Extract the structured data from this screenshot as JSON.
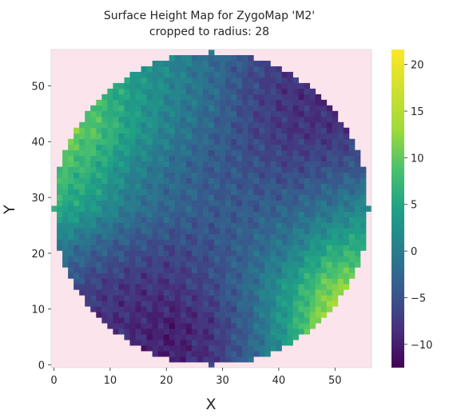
{
  "chart_data": {
    "type": "heatmap",
    "title": "Surface Height Map for ZygoMap 'M2'",
    "subtitle": "cropped to radius: 28",
    "xlabel": "X",
    "ylabel": "Y",
    "xlim": [
      -0.5,
      56.5
    ],
    "ylim": [
      -0.5,
      56.5
    ],
    "x_ticks": [
      0,
      10,
      20,
      30,
      40,
      50
    ],
    "y_ticks": [
      0,
      10,
      20,
      30,
      40,
      50
    ],
    "grid": false,
    "colormap": "viridis",
    "background_color": "#fce4ec",
    "mask": {
      "shape": "circle",
      "center": [
        28,
        28
      ],
      "radius": 28
    },
    "colorbar": {
      "range": [
        -12.5,
        21.6
      ],
      "ticks": [
        -10,
        -5,
        0,
        5,
        10,
        15,
        20
      ]
    },
    "height_field": {
      "description_of_regions": "estimated smooth trend read from the image",
      "grid_step": 7,
      "x": [
        0,
        7,
        14,
        21,
        28,
        35,
        42,
        49,
        56
      ],
      "y": [
        0,
        7,
        14,
        21,
        28,
        35,
        42,
        49,
        56
      ],
      "z_rows_bottom_to_top": [
        [
          -9,
          -9,
          -9,
          -10,
          -8,
          -3,
          3,
          9,
          12
        ],
        [
          -7,
          -8,
          -9,
          -10,
          -8,
          -3,
          5,
          15,
          17
        ],
        [
          -4,
          -7,
          -8,
          -8,
          -6,
          -2,
          4,
          11,
          13
        ],
        [
          0,
          -3,
          -5,
          -6,
          -5,
          -3,
          0,
          5,
          7
        ],
        [
          6,
          3,
          -1,
          -3,
          -4,
          -4,
          -3,
          -1,
          2
        ],
        [
          9,
          6,
          1,
          -2,
          -4,
          -5,
          -6,
          -5,
          -4
        ],
        [
          12,
          9,
          4,
          0,
          -3,
          -6,
          -8,
          -8,
          -7
        ],
        [
          10,
          8,
          4,
          1,
          -2,
          -6,
          -8,
          -9,
          -9
        ],
        [
          8,
          6,
          3,
          1,
          -2,
          -5,
          -8,
          -9,
          -9
        ]
      ]
    }
  }
}
